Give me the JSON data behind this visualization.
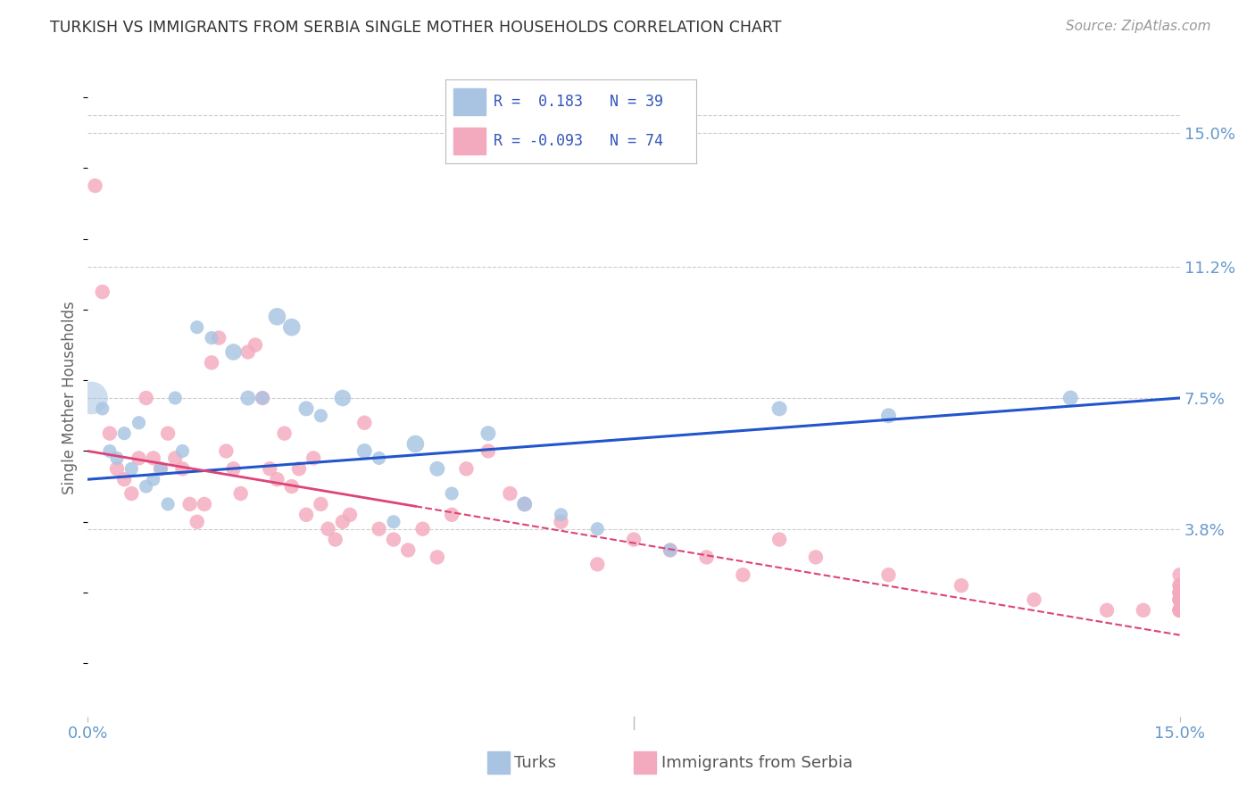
{
  "title": "TURKISH VS IMMIGRANTS FROM SERBIA SINGLE MOTHER HOUSEHOLDS CORRELATION CHART",
  "source": "Source: ZipAtlas.com",
  "ylabel": "Single Mother Households",
  "xmin": 0.0,
  "xmax": 15.0,
  "ymin": -1.5,
  "ymax": 16.5,
  "ytick_values": [
    3.8,
    7.5,
    11.2,
    15.0
  ],
  "blue_color": "#a8c4e2",
  "pink_color": "#f4aabe",
  "line_blue": "#2255cc",
  "line_pink": "#dd4477",
  "axis_label_color": "#6699cc",
  "legend_r_blue": "0.183",
  "legend_n_blue": "39",
  "legend_r_pink": "-0.093",
  "legend_n_pink": "74",
  "blue_line_y0": 5.2,
  "blue_line_y1": 7.5,
  "pink_line_solid_x0": 0.0,
  "pink_line_solid_y0": 6.0,
  "pink_line_solid_x1": 4.5,
  "pink_line_solid_y1": 4.5,
  "pink_line_dash_x0": 4.5,
  "pink_line_dash_y0": 4.5,
  "pink_line_dash_x1": 15.0,
  "pink_line_dash_y1": 0.8,
  "turks_x": [
    0.05,
    0.2,
    0.3,
    0.4,
    0.5,
    0.6,
    0.7,
    0.8,
    0.9,
    1.0,
    1.1,
    1.2,
    1.3,
    1.5,
    1.7,
    2.0,
    2.2,
    2.4,
    2.6,
    2.8,
    3.0,
    3.2,
    3.5,
    3.8,
    4.0,
    4.2,
    4.5,
    4.8,
    5.0,
    5.5,
    6.0,
    6.5,
    7.0,
    8.0,
    9.5,
    11.0,
    13.5
  ],
  "turks_y": [
    7.5,
    7.2,
    6.0,
    5.8,
    6.5,
    5.5,
    6.8,
    5.0,
    5.2,
    5.5,
    4.5,
    7.5,
    6.0,
    9.5,
    9.2,
    8.8,
    7.5,
    7.5,
    9.8,
    9.5,
    7.2,
    7.0,
    7.5,
    6.0,
    5.8,
    4.0,
    6.2,
    5.5,
    4.8,
    6.5,
    4.5,
    4.2,
    3.8,
    3.2,
    7.2,
    7.0,
    7.5
  ],
  "turks_size": [
    700,
    120,
    120,
    120,
    120,
    120,
    120,
    120,
    120,
    120,
    120,
    120,
    120,
    120,
    120,
    180,
    150,
    120,
    200,
    200,
    150,
    120,
    180,
    150,
    120,
    120,
    200,
    150,
    120,
    150,
    150,
    120,
    120,
    120,
    150,
    150,
    150
  ],
  "serbia_x": [
    0.1,
    0.2,
    0.3,
    0.4,
    0.5,
    0.6,
    0.7,
    0.8,
    0.9,
    1.0,
    1.1,
    1.2,
    1.3,
    1.4,
    1.5,
    1.6,
    1.7,
    1.8,
    1.9,
    2.0,
    2.1,
    2.2,
    2.3,
    2.4,
    2.5,
    2.6,
    2.7,
    2.8,
    2.9,
    3.0,
    3.1,
    3.2,
    3.3,
    3.4,
    3.5,
    3.6,
    3.8,
    4.0,
    4.2,
    4.4,
    4.6,
    4.8,
    5.0,
    5.2,
    5.5,
    5.8,
    6.0,
    6.5,
    7.0,
    7.5,
    8.0,
    8.5,
    9.0,
    9.5,
    10.0,
    11.0,
    12.0,
    13.0,
    14.0,
    14.5,
    15.0,
    15.0,
    15.0,
    15.0,
    15.0,
    15.0,
    15.0,
    15.0,
    15.0,
    15.0,
    15.0,
    15.0,
    15.0,
    15.0
  ],
  "serbia_y": [
    13.5,
    10.5,
    6.5,
    5.5,
    5.2,
    4.8,
    5.8,
    7.5,
    5.8,
    5.5,
    6.5,
    5.8,
    5.5,
    4.5,
    4.0,
    4.5,
    8.5,
    9.2,
    6.0,
    5.5,
    4.8,
    8.8,
    9.0,
    7.5,
    5.5,
    5.2,
    6.5,
    5.0,
    5.5,
    4.2,
    5.8,
    4.5,
    3.8,
    3.5,
    4.0,
    4.2,
    6.8,
    3.8,
    3.5,
    3.2,
    3.8,
    3.0,
    4.2,
    5.5,
    6.0,
    4.8,
    4.5,
    4.0,
    2.8,
    3.5,
    3.2,
    3.0,
    2.5,
    3.5,
    3.0,
    2.5,
    2.2,
    1.8,
    1.5,
    1.5,
    2.0,
    2.5,
    1.8,
    2.2,
    1.5,
    2.0,
    1.8,
    2.2,
    1.5,
    1.8,
    2.0,
    1.5,
    1.8,
    1.5
  ]
}
